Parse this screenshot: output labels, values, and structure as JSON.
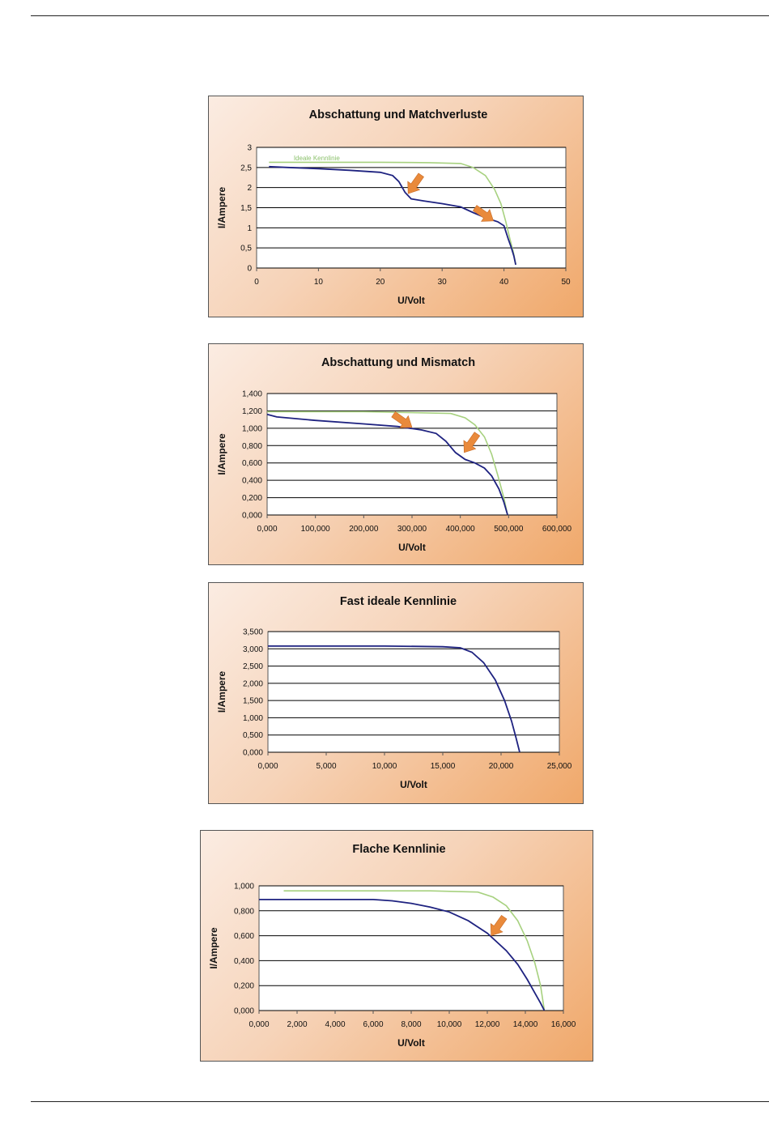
{
  "colors": {
    "ideal_curve": "#a7d17f",
    "measured_curve": "#1e2280",
    "arrow": "#e98a3b",
    "panel_gradient_start": "#fbece2",
    "panel_gradient_end": "#f0a86a"
  },
  "chart_data": [
    {
      "type": "line",
      "title": "Abschattung und Matchverluste",
      "xlabel": "U/Volt",
      "ylabel": "I/Ampere",
      "xlim": [
        0,
        50
      ],
      "ylim": [
        0,
        3
      ],
      "x_ticks": [
        0,
        10,
        20,
        30,
        40,
        50
      ],
      "x_tick_labels": [
        "0",
        "10",
        "20",
        "30",
        "40",
        "50"
      ],
      "y_ticks": [
        0,
        0.5,
        1,
        1.5,
        2,
        2.5,
        3
      ],
      "y_tick_labels": [
        "0",
        "0,5",
        "1",
        "1,5",
        "2",
        "2,5",
        "3"
      ],
      "grid": "horizontal",
      "annotations": [
        {
          "text": "Ideale Kennlinie",
          "x": 6,
          "y": 2.72
        }
      ],
      "arrows": [
        {
          "tip_x": 24.5,
          "tip_y": 1.85
        },
        {
          "tip_x": 38.3,
          "tip_y": 1.17
        }
      ],
      "series": [
        {
          "role": "ideal",
          "x": [
            2,
            10,
            20,
            28,
            33,
            35,
            37,
            38.5,
            39.5,
            40.3,
            41,
            41.5,
            41.9
          ],
          "y": [
            2.63,
            2.63,
            2.63,
            2.62,
            2.6,
            2.5,
            2.3,
            1.95,
            1.6,
            1.15,
            0.7,
            0.4,
            0.1
          ]
        },
        {
          "role": "measured",
          "x": [
            2,
            5,
            10,
            15,
            20,
            22,
            23,
            24,
            25,
            27,
            30,
            33,
            35,
            37,
            39,
            40,
            40.7,
            41.2,
            41.6,
            41.9
          ],
          "y": [
            2.52,
            2.5,
            2.47,
            2.43,
            2.38,
            2.3,
            2.15,
            1.88,
            1.72,
            1.67,
            1.6,
            1.52,
            1.38,
            1.25,
            1.15,
            1.05,
            0.72,
            0.5,
            0.3,
            0.08
          ]
        }
      ]
    },
    {
      "type": "line",
      "title": "Abschattung und Mismatch",
      "xlabel": "U/Volt",
      "ylabel": "I/Ampere",
      "xlim": [
        0,
        600
      ],
      "ylim": [
        0,
        1.4
      ],
      "x_ticks": [
        0,
        100,
        200,
        300,
        400,
        500,
        600
      ],
      "x_tick_labels": [
        "0,000",
        "100,000",
        "200,000",
        "300,000",
        "400,000",
        "500,000",
        "600,000"
      ],
      "y_ticks": [
        0,
        0.2,
        0.4,
        0.6,
        0.8,
        1.0,
        1.2,
        1.4
      ],
      "y_tick_labels": [
        "0,000",
        "0,200",
        "0,400",
        "0,600",
        "0,800",
        "1,000",
        "1,200",
        "1,400"
      ],
      "grid": "horizontal",
      "arrows": [
        {
          "tip_x": 300,
          "tip_y": 1.01
        },
        {
          "tip_x": 408,
          "tip_y": 0.72
        }
      ],
      "series": [
        {
          "role": "ideal",
          "x": [
            0,
            100,
            200,
            300,
            380,
            410,
            430,
            450,
            465,
            478,
            490,
            498
          ],
          "y": [
            1.19,
            1.19,
            1.19,
            1.18,
            1.17,
            1.12,
            1.04,
            0.9,
            0.7,
            0.45,
            0.2,
            0.0
          ]
        },
        {
          "role": "measured",
          "x": [
            0,
            20,
            100,
            200,
            270,
            320,
            350,
            370,
            390,
            410,
            430,
            450,
            465,
            480,
            490,
            498
          ],
          "y": [
            1.16,
            1.13,
            1.09,
            1.05,
            1.02,
            0.98,
            0.94,
            0.85,
            0.72,
            0.64,
            0.6,
            0.54,
            0.45,
            0.3,
            0.15,
            0.0
          ]
        }
      ]
    },
    {
      "type": "line",
      "title": "Fast ideale Kennlinie",
      "xlabel": "U/Volt",
      "ylabel": "I/Ampere",
      "xlim": [
        0,
        25
      ],
      "ylim": [
        0,
        3.5
      ],
      "x_ticks": [
        0,
        5,
        10,
        15,
        20,
        25
      ],
      "x_tick_labels": [
        "0,000",
        "5,000",
        "10,000",
        "15,000",
        "20,000",
        "25,000"
      ],
      "y_ticks": [
        0,
        0.5,
        1.0,
        1.5,
        2.0,
        2.5,
        3.0,
        3.5
      ],
      "y_tick_labels": [
        "0,000",
        "0,500",
        "1,000",
        "1,500",
        "2,000",
        "2,500",
        "3,000",
        "3,500"
      ],
      "grid": "horizontal",
      "series": [
        {
          "role": "measured",
          "x": [
            0,
            5,
            10,
            13,
            15,
            16.5,
            17.5,
            18.5,
            19.5,
            20.3,
            20.9,
            21.3,
            21.6
          ],
          "y": [
            3.08,
            3.08,
            3.08,
            3.07,
            3.06,
            3.03,
            2.9,
            2.6,
            2.1,
            1.5,
            0.9,
            0.4,
            0.0
          ]
        }
      ]
    },
    {
      "type": "line",
      "title": "Flache Kennlinie",
      "xlabel": "U/Volt",
      "ylabel": "I/Ampere",
      "xlim": [
        0,
        16
      ],
      "ylim": [
        0,
        1.0
      ],
      "x_ticks": [
        0,
        2,
        4,
        6,
        8,
        10,
        12,
        14,
        16
      ],
      "x_tick_labels": [
        "0,000",
        "2,000",
        "4,000",
        "6,000",
        "8,000",
        "10,000",
        "12,000",
        "14,000",
        "16,000"
      ],
      "y_ticks": [
        0,
        0.2,
        0.4,
        0.6,
        0.8,
        1.0
      ],
      "y_tick_labels": [
        "0,000",
        "0,200",
        "0,400",
        "0,600",
        "0,800",
        "1,000"
      ],
      "grid": "horizontal",
      "arrows": [
        {
          "tip_x": 12.2,
          "tip_y": 0.6
        }
      ],
      "series": [
        {
          "role": "ideal",
          "x": [
            1.3,
            5,
            9,
            11.5,
            12.3,
            13,
            13.6,
            14.1,
            14.5,
            14.8,
            15.0
          ],
          "y": [
            0.96,
            0.96,
            0.96,
            0.95,
            0.91,
            0.84,
            0.72,
            0.56,
            0.38,
            0.2,
            0.0
          ]
        },
        {
          "role": "measured",
          "x": [
            0,
            2,
            4,
            6,
            7,
            8,
            9,
            10,
            11,
            12,
            13,
            13.6,
            14.1,
            14.5,
            14.8,
            15.0
          ],
          "y": [
            0.89,
            0.89,
            0.89,
            0.89,
            0.88,
            0.86,
            0.83,
            0.79,
            0.72,
            0.62,
            0.48,
            0.37,
            0.25,
            0.14,
            0.06,
            0.0
          ]
        }
      ]
    }
  ]
}
